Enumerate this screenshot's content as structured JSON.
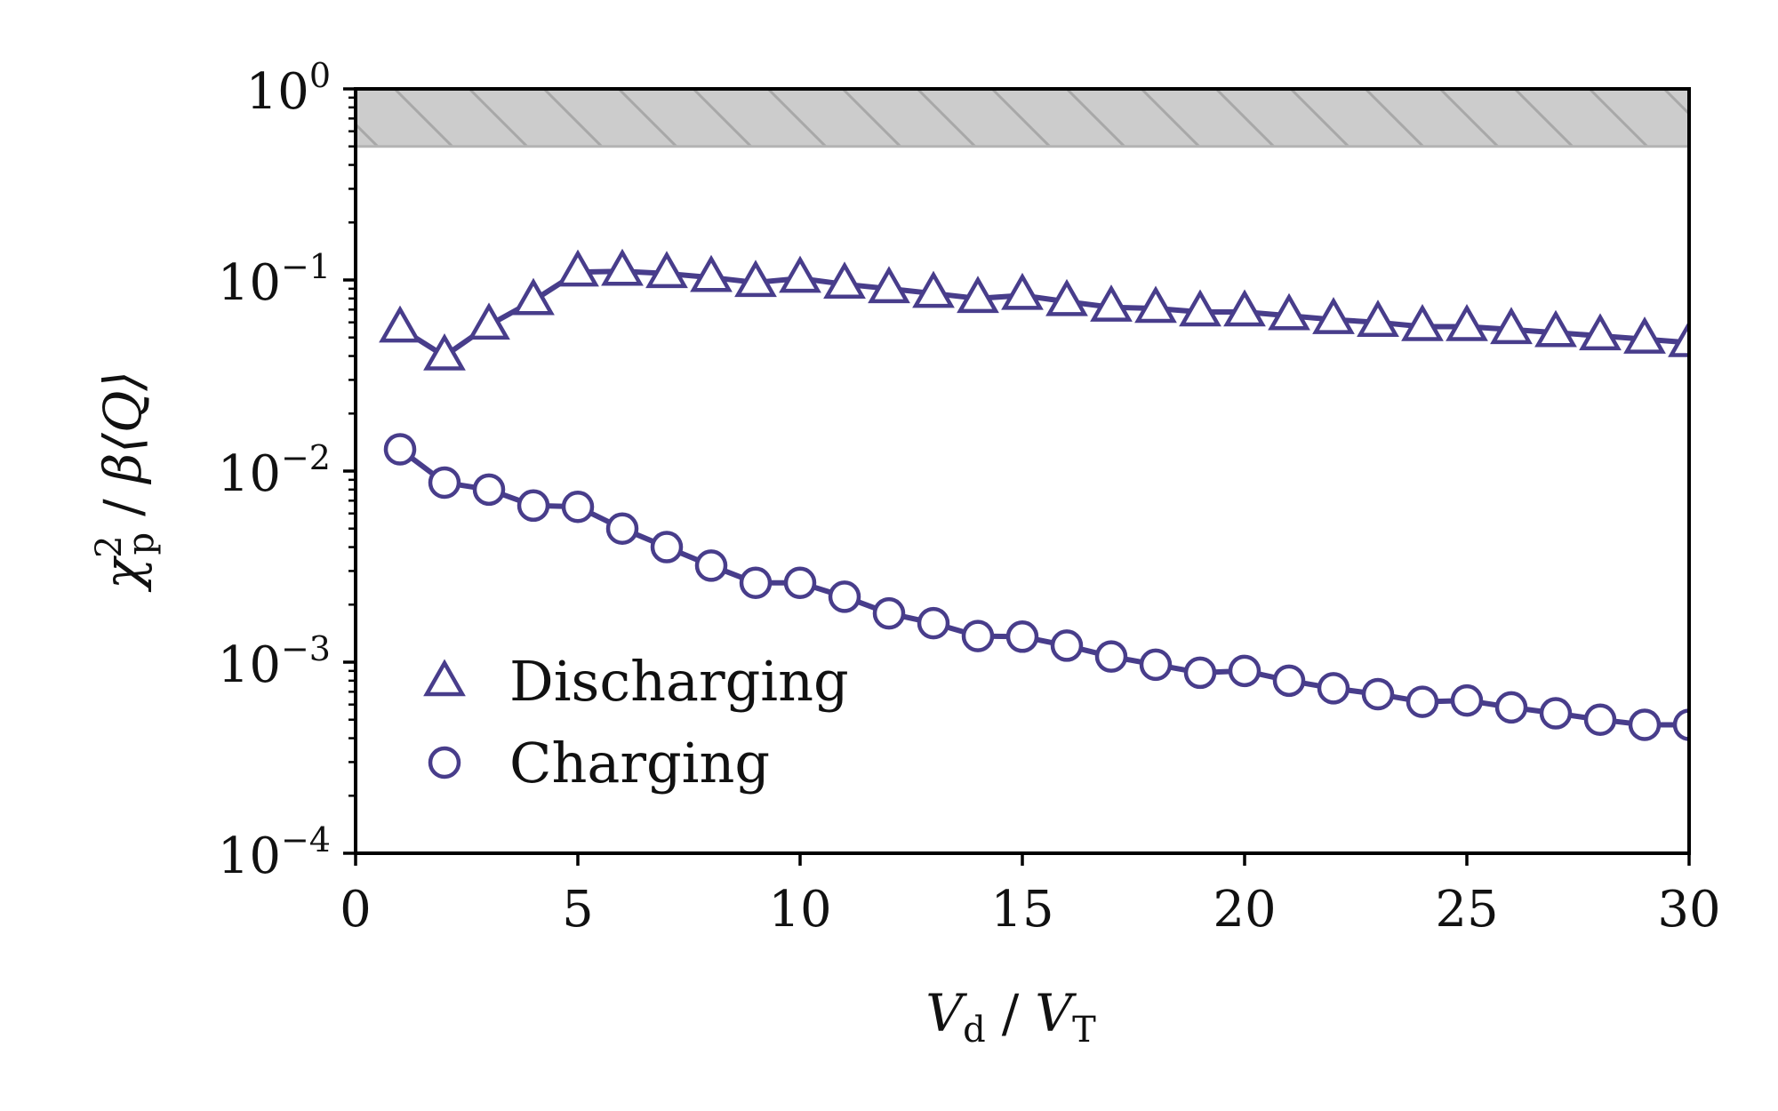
{
  "chart_data": {
    "type": "line",
    "xlabel": {
      "var": "V",
      "var_sub": "d",
      "sep": "/",
      "ref": "V",
      "ref_sub": "T"
    },
    "ylabel": {
      "var": "χ",
      "var_sup": "2",
      "var_sub": "p",
      "sep": "/",
      "rest": "β⟨Q⟩"
    },
    "xlim": [
      0,
      30
    ],
    "ylim": [
      0.0001,
      1
    ],
    "yscale": "log",
    "grid": false,
    "legend_position": "lower-left",
    "x_ticks": [
      {
        "value": 0,
        "label": "0"
      },
      {
        "value": 5,
        "label": "5"
      },
      {
        "value": 10,
        "label": "10"
      },
      {
        "value": 15,
        "label": "15"
      },
      {
        "value": 20,
        "label": "20"
      },
      {
        "value": 25,
        "label": "25"
      },
      {
        "value": 30,
        "label": "30"
      }
    ],
    "y_ticks": [
      {
        "value": 1,
        "base": "10",
        "exp": "0"
      },
      {
        "value": 0.1,
        "base": "10",
        "exp": "−1"
      },
      {
        "value": 0.01,
        "base": "10",
        "exp": "−2"
      },
      {
        "value": 0.001,
        "base": "10",
        "exp": "−3"
      },
      {
        "value": 0.0001,
        "base": "10",
        "exp": "−4"
      }
    ],
    "shaded_region": {
      "y_from": 0.5,
      "y_to": 1,
      "fill": "#cccccc",
      "hatch": "#a8a8a8",
      "edge": "#b4b4b4"
    },
    "series_color": "#483d8b",
    "x": [
      1,
      2,
      3,
      4,
      5,
      6,
      7,
      8,
      9,
      10,
      11,
      12,
      13,
      14,
      15,
      16,
      17,
      18,
      19,
      20,
      21,
      22,
      23,
      24,
      25,
      26,
      27,
      28,
      29,
      30
    ],
    "series": [
      {
        "name": "Discharging",
        "marker": "triangle",
        "values": [
          0.056,
          0.04,
          0.058,
          0.078,
          0.11,
          0.111,
          0.108,
          0.103,
          0.097,
          0.102,
          0.095,
          0.09,
          0.085,
          0.08,
          0.083,
          0.077,
          0.072,
          0.071,
          0.068,
          0.068,
          0.065,
          0.062,
          0.06,
          0.057,
          0.057,
          0.055,
          0.053,
          0.051,
          0.049,
          0.047
        ]
      },
      {
        "name": "Charging",
        "marker": "circle",
        "values": [
          0.013,
          0.0087,
          0.008,
          0.0066,
          0.0065,
          0.005,
          0.004,
          0.0032,
          0.0026,
          0.0026,
          0.0022,
          0.0018,
          0.0016,
          0.00137,
          0.00136,
          0.00122,
          0.00107,
          0.00097,
          0.00088,
          0.0009,
          0.0008,
          0.00073,
          0.00068,
          0.00062,
          0.00063,
          0.00058,
          0.00054,
          0.0005,
          0.00047,
          0.00047
        ]
      }
    ]
  }
}
